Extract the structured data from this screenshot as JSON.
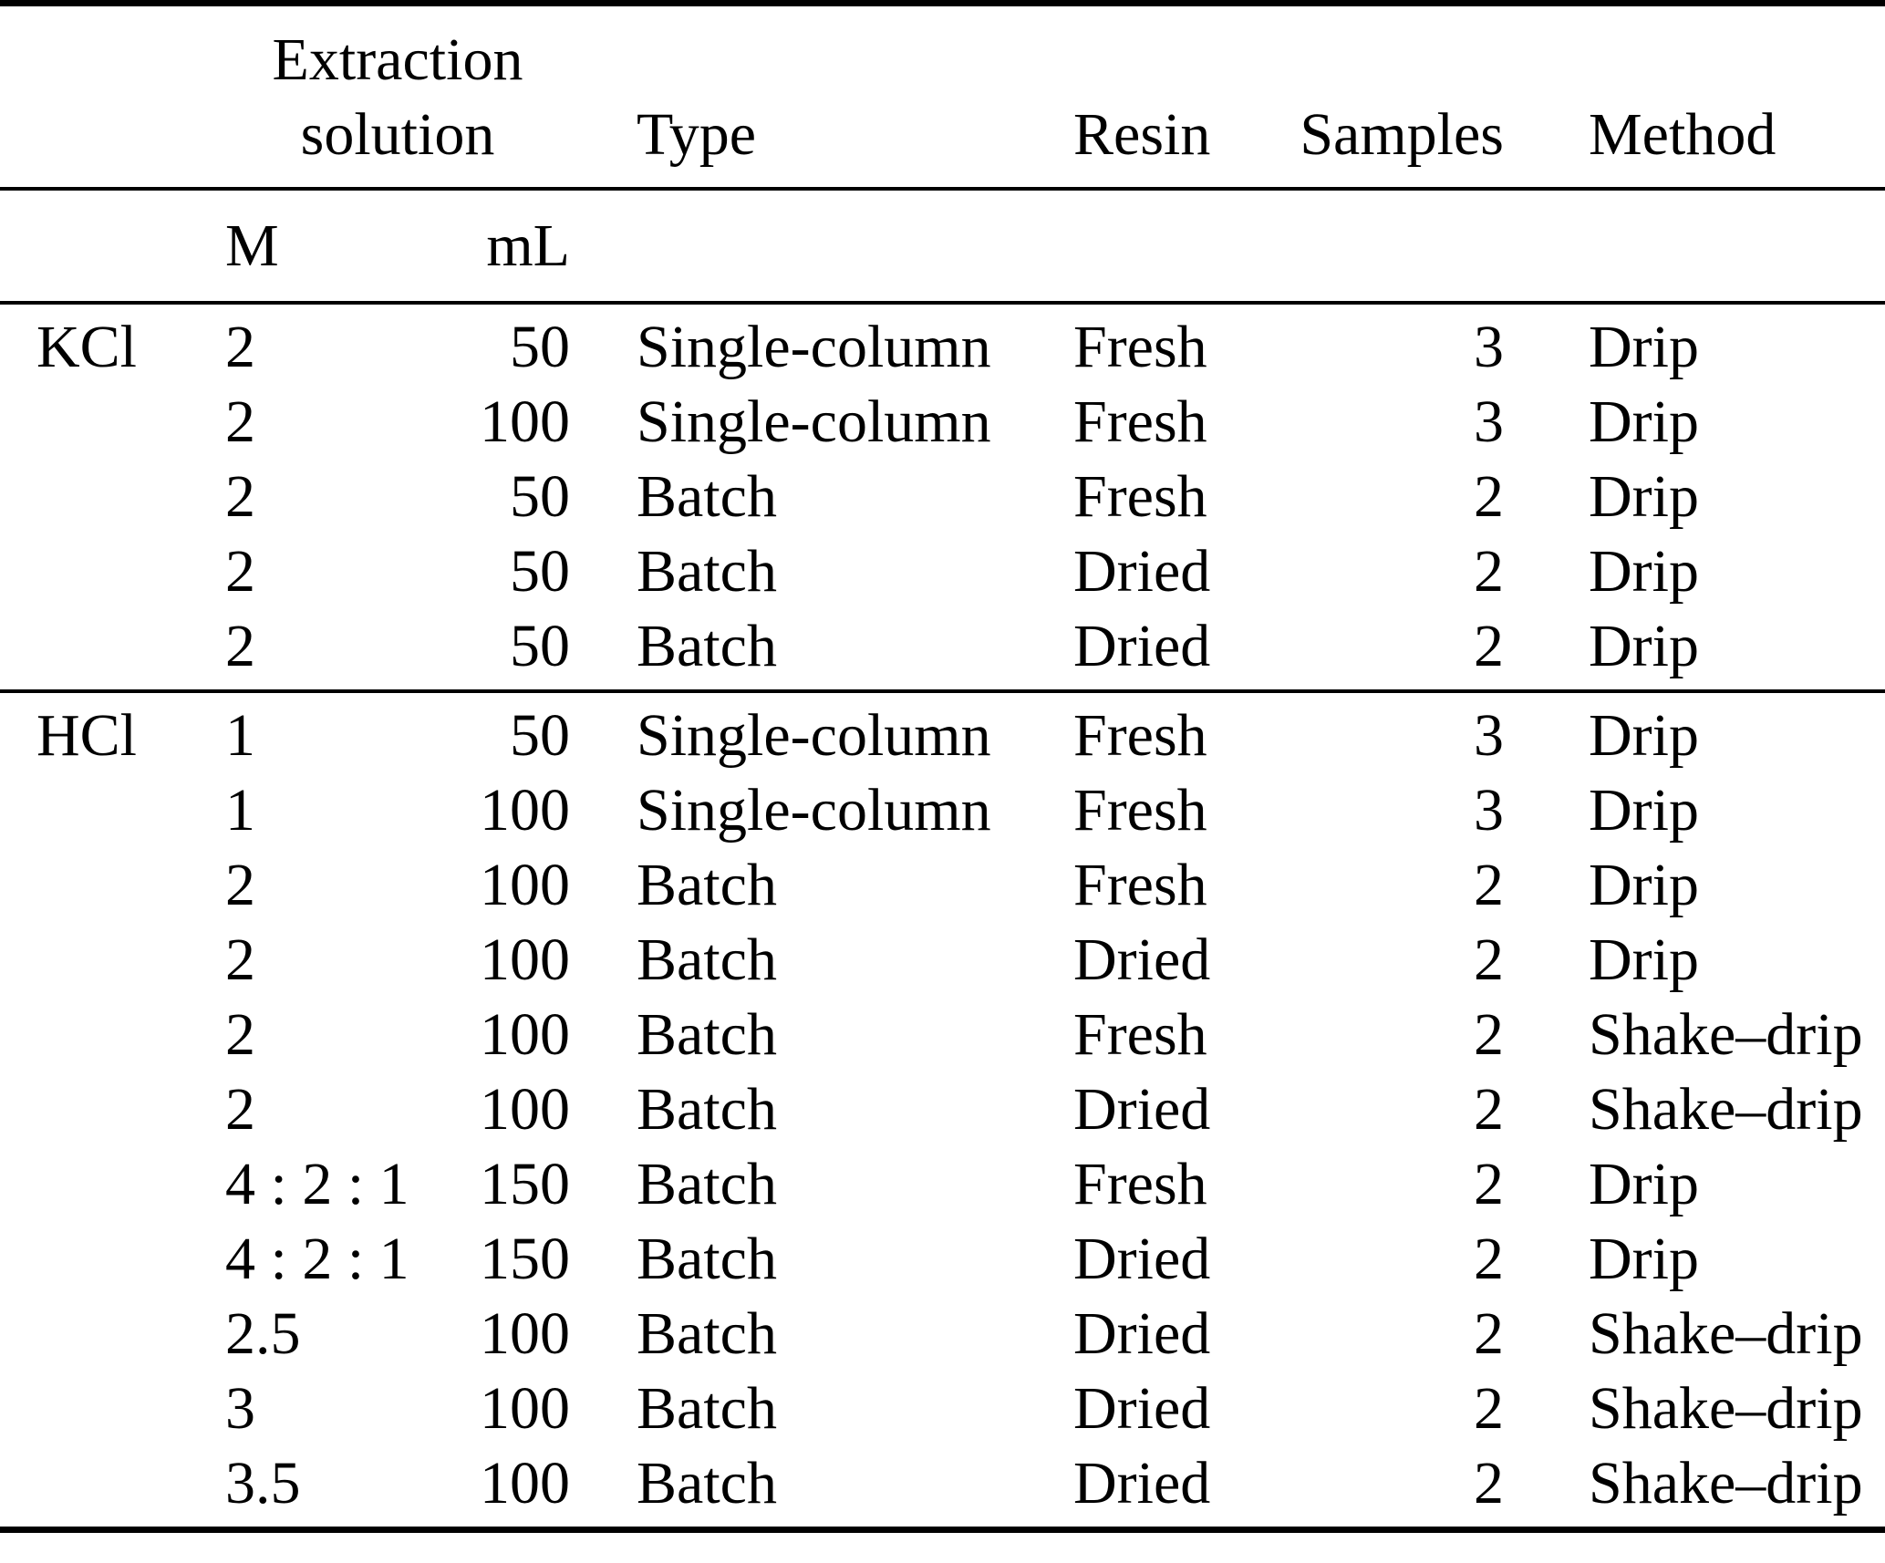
{
  "table": {
    "columns": {
      "extraction_solution": {
        "label_line1": "Extraction",
        "label_line2": "solution",
        "m_unit": "M",
        "ml_unit": "mL"
      },
      "type": "Type",
      "resin": "Resin",
      "samples": "Samples",
      "method": "Method"
    },
    "sections": [
      {
        "group": "KCl",
        "rows": [
          {
            "m": "2",
            "ml": "50",
            "type": "Single-column",
            "resin": "Fresh",
            "samples": "3",
            "method": "Drip"
          },
          {
            "m": "2",
            "ml": "100",
            "type": "Single-column",
            "resin": "Fresh",
            "samples": "3",
            "method": "Drip"
          },
          {
            "m": "2",
            "ml": "50",
            "type": "Batch",
            "resin": "Fresh",
            "samples": "2",
            "method": "Drip"
          },
          {
            "m": "2",
            "ml": "50",
            "type": "Batch",
            "resin": "Dried",
            "samples": "2",
            "method": "Drip"
          },
          {
            "m": "2",
            "ml": "50",
            "type": "Batch",
            "resin": "Dried",
            "samples": "2",
            "method": "Drip"
          }
        ]
      },
      {
        "group": "HCl",
        "rows": [
          {
            "m": "1",
            "ml": "50",
            "type": "Single-column",
            "resin": "Fresh",
            "samples": "3",
            "method": "Drip"
          },
          {
            "m": "1",
            "ml": "100",
            "type": "Single-column",
            "resin": "Fresh",
            "samples": "3",
            "method": "Drip"
          },
          {
            "m": "2",
            "ml": "100",
            "type": "Batch",
            "resin": "Fresh",
            "samples": "2",
            "method": "Drip"
          },
          {
            "m": "2",
            "ml": "100",
            "type": "Batch",
            "resin": "Dried",
            "samples": "2",
            "method": "Drip"
          },
          {
            "m": "2",
            "ml": "100",
            "type": "Batch",
            "resin": "Fresh",
            "samples": "2",
            "method": "Shake–drip"
          },
          {
            "m": "2",
            "ml": "100",
            "type": "Batch",
            "resin": "Dried",
            "samples": "2",
            "method": "Shake–drip"
          },
          {
            "m": "4 : 2 : 1",
            "ml": "150",
            "type": "Batch",
            "resin": "Fresh",
            "samples": "2",
            "method": "Drip"
          },
          {
            "m": "4 : 2 : 1",
            "ml": "150",
            "type": "Batch",
            "resin": "Dried",
            "samples": "2",
            "method": "Drip"
          },
          {
            "m": "2.5",
            "ml": "100",
            "type": "Batch",
            "resin": "Dried",
            "samples": "2",
            "method": "Shake–drip"
          },
          {
            "m": "3",
            "ml": "100",
            "type": "Batch",
            "resin": "Dried",
            "samples": "2",
            "method": "Shake–drip"
          },
          {
            "m": "3.5",
            "ml": "100",
            "type": "Batch",
            "resin": "Dried",
            "samples": "2",
            "method": "Shake–drip"
          }
        ]
      }
    ]
  }
}
